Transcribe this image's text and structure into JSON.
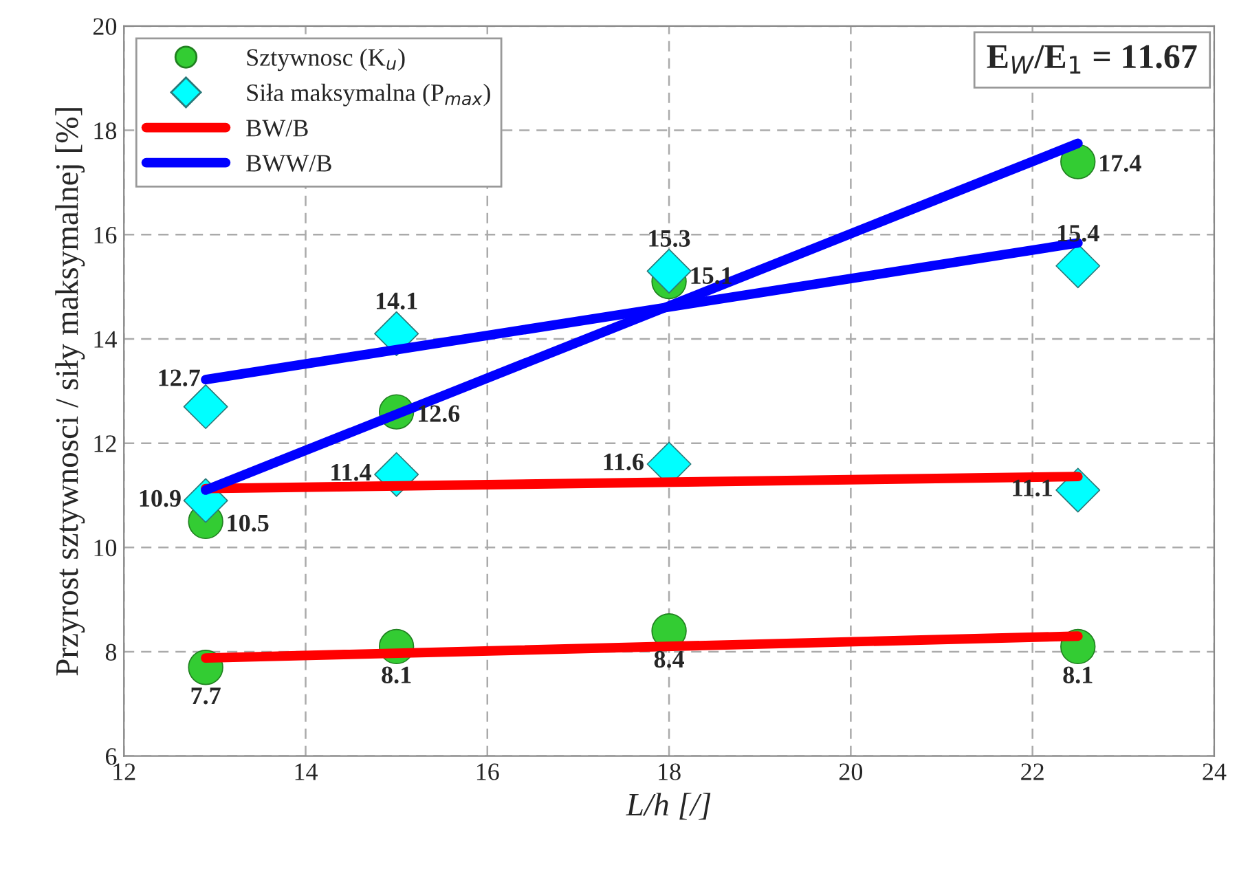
{
  "chart_data": {
    "type": "scatter",
    "xlabel": "L/h [/]",
    "ylabel": "Przyrost sztywnosci / siły maksymalnej [%]",
    "xlim": [
      12,
      24
    ],
    "xticks": [
      12,
      14,
      16,
      18,
      20,
      22,
      24
    ],
    "ylim": [
      6,
      20
    ],
    "yticks": [
      6,
      8,
      10,
      12,
      14,
      16,
      18,
      20
    ],
    "grid": true,
    "legend": "top left",
    "annotations": [
      "E$_{W}$/E$_{1}$ = 11.67"
    ],
    "series": [
      {
        "name": "Sztywnosc (K$_{u}$)",
        "type": "scatter",
        "marker": "circle",
        "color": "#33cc33",
        "x": [
          12.9,
          15,
          18,
          22.5
        ],
        "values": [
          7.7,
          8.1,
          8.4,
          8.1
        ],
        "value_labels": [
          "7.7",
          "8.1",
          "8.4",
          "8.1"
        ]
      },
      {
        "type": "scatter",
        "marker": "circle",
        "color": "#33cc33",
        "x": [
          12.9,
          15,
          18,
          22.5
        ],
        "values": [
          10.5,
          12.6,
          15.1,
          17.4
        ],
        "value_labels": [
          "10.5",
          "12.6",
          "15.1",
          "17.4"
        ]
      },
      {
        "name": "Siła maksymalna (P$_{max}$)",
        "type": "scatter",
        "marker": "diamond",
        "color": "#00ffff",
        "x": [
          12.9,
          15,
          18,
          22.5
        ],
        "values": [
          10.9,
          11.4,
          11.6,
          11.1
        ],
        "value_labels": [
          "10.9",
          "11.4",
          "11.6",
          "11.1"
        ]
      },
      {
        "type": "scatter",
        "marker": "diamond",
        "color": "#00ffff",
        "x": [
          12.9,
          15,
          18,
          22.5
        ],
        "values": [
          12.7,
          14.1,
          15.3,
          15.4
        ],
        "value_labels": [
          "12.7",
          "14.1",
          "15.3",
          "15.4"
        ]
      },
      {
        "name": "BW/B",
        "type": "line",
        "color": "#ff0000",
        "x": [
          12.9,
          22.5
        ],
        "values": [
          7.88,
          8.3
        ]
      },
      {
        "type": "line",
        "color": "#ff0000",
        "x": [
          12.9,
          22.5
        ],
        "values": [
          11.13,
          11.36
        ]
      },
      {
        "name": "BWW/B",
        "type": "line",
        "color": "#0000ff",
        "x": [
          12.9,
          22.5
        ],
        "values": [
          11.1,
          17.75
        ]
      },
      {
        "type": "line",
        "color": "#0000ff",
        "x": [
          12.9,
          22.5
        ],
        "values": [
          13.22,
          15.84
        ]
      }
    ]
  }
}
